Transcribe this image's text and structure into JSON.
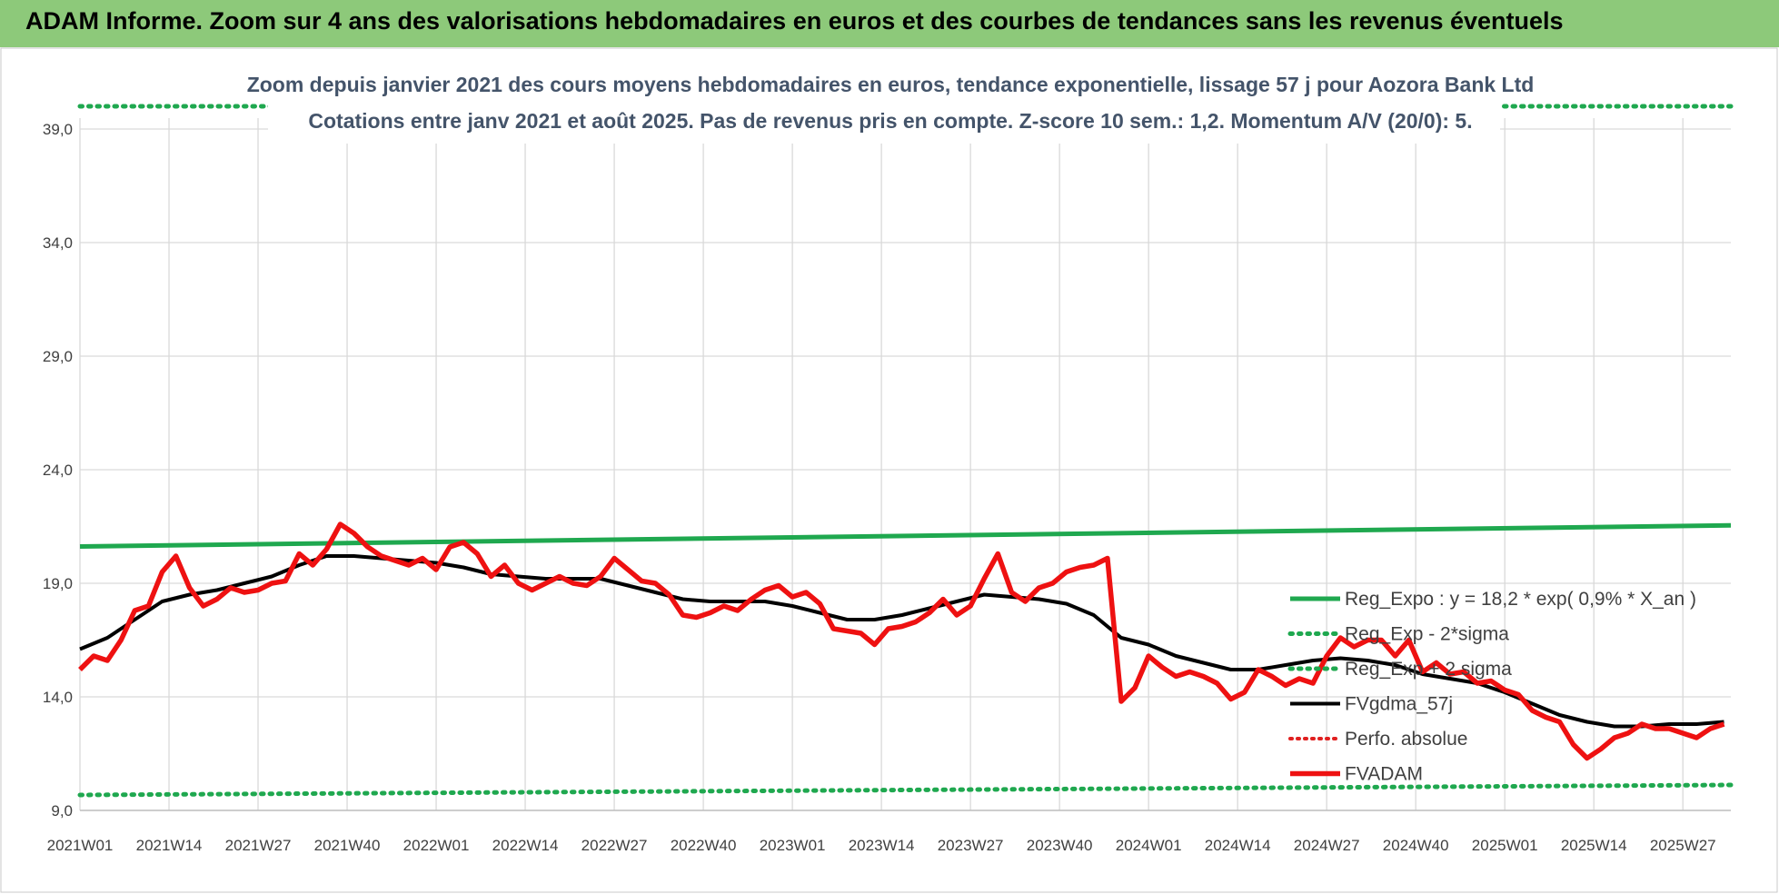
{
  "banner": {
    "title": "ADAM Informe. Zoom sur 4 ans des valorisations hebdomadaires en euros et des courbes de tendances sans les revenus éventuels"
  },
  "colors": {
    "banner": "#8dc97a",
    "reg_expo": "#1fa84f",
    "sigma": "#1fa84f",
    "gdma": "#000000",
    "perfo": "#e02020",
    "fvadam": "#ee1111",
    "grid": "#d9d9d9"
  },
  "chart_data": {
    "type": "line",
    "title": "Zoom depuis janvier 2021 des cours moyens hebdomadaires en euros, tendance exponentielle, lissage 57 j pour Aozora Bank Ltd",
    "subtitle": "Cotations entre janv 2021 et août 2025.  Pas de revenus pris en compte.  Z-score 10 sem.: 1,2.  Momentum A/V (20/0): 5.",
    "xlabel": "",
    "ylabel": "",
    "ylim": [
      9.0,
      39.0
    ],
    "grid": true,
    "legend_position": "right",
    "y_ticks": [
      "39,0",
      "34,0",
      "29,0",
      "24,0",
      "19,0",
      "14,0",
      "9,0"
    ],
    "x_ticks": [
      "2021W01",
      "2021W14",
      "2021W27",
      "2021W40",
      "2022W01",
      "2022W14",
      "2022W27",
      "2022W40",
      "2023W01",
      "2023W14",
      "2023W27",
      "2023W40",
      "2024W01",
      "2024W14",
      "2024W27",
      "2024W40",
      "2025W01",
      "2025W14",
      "2025W27"
    ],
    "week_range": [
      0,
      241
    ],
    "series": [
      {
        "name": "Reg_Expo : y = 18,2 * exp( 0,9% *  X_an )",
        "style": "solid-green",
        "x": [
          0,
          241
        ],
        "y": [
          20.62,
          21.55
        ]
      },
      {
        "name": "Reg_Exp - 2*sigma",
        "style": "dotted-green",
        "x": [
          0,
          241
        ],
        "y": [
          9.68,
          10.12
        ]
      },
      {
        "name": "Reg_Exp + 2 sigma",
        "style": "dotted-green",
        "x": [
          0,
          241
        ],
        "y": [
          40.0,
          40.0
        ]
      },
      {
        "name": "FVgdma_57j",
        "style": "solid-black",
        "x": [
          0,
          4,
          8,
          12,
          16,
          20,
          24,
          28,
          32,
          36,
          40,
          44,
          48,
          52,
          56,
          60,
          64,
          68,
          72,
          76,
          80,
          84,
          88,
          92,
          96,
          100,
          104,
          108,
          112,
          116,
          120,
          124,
          128,
          132,
          136,
          140,
          144,
          148,
          152,
          156,
          160,
          164,
          168,
          172,
          176,
          180,
          184,
          188,
          192,
          196,
          200,
          204,
          208,
          212,
          216,
          220,
          224,
          228,
          232,
          236,
          240
        ],
        "y": [
          16.1,
          16.6,
          17.4,
          18.2,
          18.5,
          18.7,
          19.0,
          19.3,
          19.8,
          20.2,
          20.2,
          20.1,
          20.0,
          19.9,
          19.7,
          19.4,
          19.3,
          19.2,
          19.2,
          19.2,
          18.9,
          18.6,
          18.3,
          18.2,
          18.2,
          18.2,
          18.0,
          17.7,
          17.4,
          17.4,
          17.6,
          17.9,
          18.2,
          18.5,
          18.4,
          18.3,
          18.1,
          17.6,
          16.6,
          16.3,
          15.8,
          15.5,
          15.2,
          15.2,
          15.4,
          15.6,
          15.7,
          15.6,
          15.4,
          15.0,
          14.8,
          14.6,
          14.2,
          13.7,
          13.2,
          12.9,
          12.7,
          12.7,
          12.8,
          12.8,
          12.9
        ]
      },
      {
        "name": "Perfo. absolue",
        "style": "dotted-red",
        "x": [],
        "y": []
      },
      {
        "name": "FVADAM",
        "style": "solid-red",
        "x": [
          0,
          2,
          4,
          6,
          8,
          10,
          12,
          14,
          16,
          18,
          20,
          22,
          24,
          26,
          28,
          30,
          32,
          34,
          36,
          38,
          40,
          42,
          44,
          46,
          48,
          50,
          52,
          54,
          56,
          58,
          60,
          62,
          64,
          66,
          68,
          70,
          72,
          74,
          76,
          78,
          80,
          82,
          84,
          86,
          88,
          90,
          92,
          94,
          96,
          98,
          100,
          102,
          104,
          106,
          108,
          110,
          112,
          114,
          116,
          118,
          120,
          122,
          124,
          126,
          128,
          130,
          132,
          134,
          136,
          138,
          140,
          142,
          144,
          146,
          148,
          150,
          152,
          154,
          156,
          158,
          160,
          162,
          164,
          166,
          168,
          170,
          172,
          174,
          176,
          178,
          180,
          182,
          184,
          186,
          188,
          190,
          192,
          194,
          196,
          198,
          200,
          202,
          204,
          206,
          208,
          210,
          212,
          214,
          216,
          218,
          220,
          222,
          224,
          226,
          228,
          230,
          232,
          234,
          236,
          238,
          240
        ],
        "y": [
          15.2,
          15.8,
          15.6,
          16.5,
          17.8,
          18.0,
          19.5,
          20.2,
          18.8,
          18.0,
          18.3,
          18.8,
          18.6,
          18.7,
          19.0,
          19.1,
          20.3,
          19.8,
          20.5,
          21.6,
          21.2,
          20.6,
          20.2,
          20.0,
          19.8,
          20.1,
          19.6,
          20.6,
          20.8,
          20.3,
          19.3,
          19.8,
          19.0,
          18.7,
          19.0,
          19.3,
          19.0,
          18.9,
          19.3,
          20.1,
          19.6,
          19.1,
          19.0,
          18.5,
          17.6,
          17.5,
          17.7,
          18.0,
          17.8,
          18.3,
          18.7,
          18.9,
          18.4,
          18.6,
          18.1,
          17.0,
          16.9,
          16.8,
          16.3,
          17.0,
          17.1,
          17.3,
          17.7,
          18.3,
          17.6,
          18.0,
          19.2,
          20.3,
          18.6,
          18.2,
          18.8,
          19.0,
          19.5,
          19.7,
          19.8,
          20.1,
          13.8,
          14.4,
          15.8,
          15.3,
          14.9,
          15.1,
          14.9,
          14.6,
          13.9,
          14.2,
          15.2,
          14.9,
          14.5,
          14.8,
          14.6,
          15.8,
          16.6,
          16.2,
          16.5,
          16.5,
          15.8,
          16.5,
          15.1,
          15.5,
          15.0,
          15.1,
          14.6,
          14.7,
          14.3,
          14.1,
          13.4,
          13.1,
          12.9,
          11.9,
          11.3,
          11.7,
          12.2,
          12.4,
          12.8,
          12.6,
          12.6,
          12.4,
          12.2,
          12.6,
          12.8
        ]
      }
    ]
  }
}
